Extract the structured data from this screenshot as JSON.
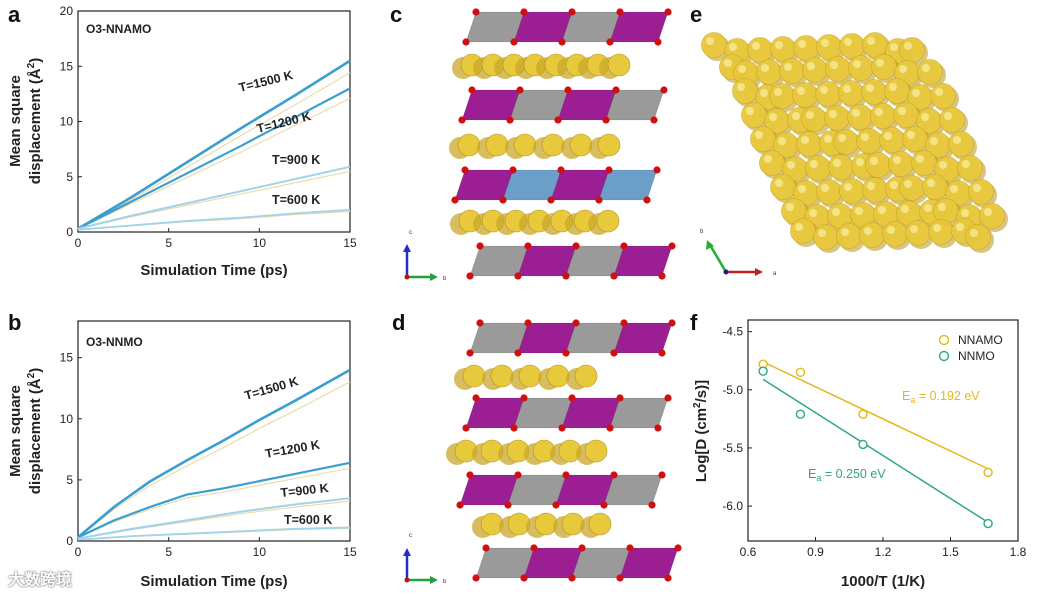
{
  "panels": {
    "a": {
      "letter": "a",
      "tag": "O3-NNAMO"
    },
    "b": {
      "letter": "b",
      "tag": "O3-NNMO"
    },
    "c": {
      "letter": "c"
    },
    "d": {
      "letter": "d"
    },
    "e": {
      "letter": "e"
    },
    "f": {
      "letter": "f"
    }
  },
  "axes_ab": {
    "ylabel_line1": "Mean square",
    "ylabel_line2": "displacement (Å",
    "ylabel_sup": "2",
    "ylabel_end": ")",
    "xlabel": "Simulation Time (ps)"
  },
  "axes_f": {
    "ylabel_pre": "Log[D (cm",
    "ylabel_sup": "2",
    "ylabel_post": "/s)]",
    "xlabel": "1000/T (1/K)"
  },
  "crystal_axes": {
    "c_panel": [
      "c",
      "b"
    ],
    "d_panel": [
      "c",
      "b"
    ],
    "e_panel": [
      "b",
      "a"
    ]
  },
  "colors": {
    "msd_strong": "#3a9fd0",
    "msd_light": "#9fd4ea",
    "msd_faint": "#e9d9a8",
    "nnamo": "#e3b81b",
    "nnmo": "#2ba886",
    "sodium": "#e8c93c",
    "mn_oct": "#9b1f93",
    "ni_oct": "#9a9a9a",
    "al_oct": "#6b9fc9",
    "oxygen": "#d01010"
  },
  "watermark": "大数跨境",
  "chart_data": [
    {
      "type": "line",
      "panel": "a",
      "xlabel": "Simulation Time (ps)",
      "ylabel": "Mean square displacement (Å2)",
      "xlim": [
        0,
        15
      ],
      "ylim": [
        0,
        20
      ],
      "xticks": [
        0,
        5,
        10,
        15
      ],
      "yticks": [
        0,
        5,
        10,
        15,
        20
      ],
      "series": [
        {
          "name": "T=1500 K",
          "x": [
            0,
            3,
            6,
            9,
            12,
            15
          ],
          "y": [
            0.3,
            3.2,
            6.3,
            9.4,
            12.4,
            15.5
          ]
        },
        {
          "name": "T=1200 K",
          "x": [
            0,
            3,
            6,
            9,
            12,
            15
          ],
          "y": [
            0.3,
            2.8,
            5.3,
            7.8,
            10.4,
            13.0
          ]
        },
        {
          "name": "T=900 K",
          "x": [
            0,
            3,
            6,
            9,
            12,
            15
          ],
          "y": [
            0.3,
            1.5,
            2.6,
            3.7,
            4.8,
            5.9
          ]
        },
        {
          "name": "T=600 K",
          "x": [
            0,
            3,
            6,
            9,
            12,
            15
          ],
          "y": [
            0.2,
            0.6,
            1.0,
            1.3,
            1.7,
            2.0
          ]
        }
      ]
    },
    {
      "type": "line",
      "panel": "b",
      "xlabel": "Simulation Time (ps)",
      "ylabel": "Mean square displacement (Å2)",
      "xlim": [
        0,
        15
      ],
      "ylim": [
        0,
        18
      ],
      "xticks": [
        0,
        5,
        10,
        15
      ],
      "yticks": [
        0,
        5,
        10,
        15
      ],
      "series": [
        {
          "name": "T=1500 K",
          "x": [
            0,
            2,
            4,
            6,
            8,
            10,
            12,
            15
          ],
          "y": [
            0.3,
            2.8,
            4.9,
            6.6,
            8.2,
            9.9,
            11.5,
            14.0
          ]
        },
        {
          "name": "T=1200 K",
          "x": [
            0,
            2,
            4,
            6,
            8,
            10,
            12,
            15
          ],
          "y": [
            0.3,
            1.7,
            2.8,
            3.8,
            4.3,
            4.9,
            5.5,
            6.4
          ]
        },
        {
          "name": "T=900 K",
          "x": [
            0,
            3,
            6,
            9,
            12,
            15
          ],
          "y": [
            0.2,
            1.0,
            1.7,
            2.4,
            3.0,
            3.5
          ]
        },
        {
          "name": "T=600 K",
          "x": [
            0,
            3,
            6,
            9,
            12,
            15
          ],
          "y": [
            0.1,
            0.4,
            0.6,
            0.8,
            1.0,
            1.1
          ]
        }
      ]
    },
    {
      "type": "scatter",
      "panel": "f",
      "xlabel": "1000/T (1/K)",
      "ylabel": "Log[D (cm2/s)]",
      "xlim": [
        0.6,
        1.8
      ],
      "ylim": [
        -6.3,
        -4.4
      ],
      "xticks": [
        0.6,
        0.9,
        1.2,
        1.5,
        1.8
      ],
      "yticks": [
        -4.5,
        -5.0,
        -5.5,
        -6.0
      ],
      "legend": "top-right",
      "series": [
        {
          "name": "NNAMO",
          "x": [
            0.667,
            0.833,
            1.111,
            1.667
          ],
          "y": [
            -4.78,
            -4.85,
            -5.21,
            -5.71
          ],
          "fit_x": [
            0.667,
            1.667
          ],
          "fit_y": [
            -4.76,
            -5.68
          ],
          "annotation_pre": "E",
          "annotation_sub": "a",
          "annotation_post": " = 0.192 eV"
        },
        {
          "name": "NNMO",
          "x": [
            0.667,
            0.833,
            1.111,
            1.667
          ],
          "y": [
            -4.84,
            -5.21,
            -5.47,
            -6.15
          ],
          "fit_x": [
            0.667,
            1.667
          ],
          "fit_y": [
            -4.91,
            -6.14
          ],
          "annotation_pre": "E",
          "annotation_sub": "a",
          "annotation_post": " = 0.250 eV"
        }
      ]
    }
  ]
}
